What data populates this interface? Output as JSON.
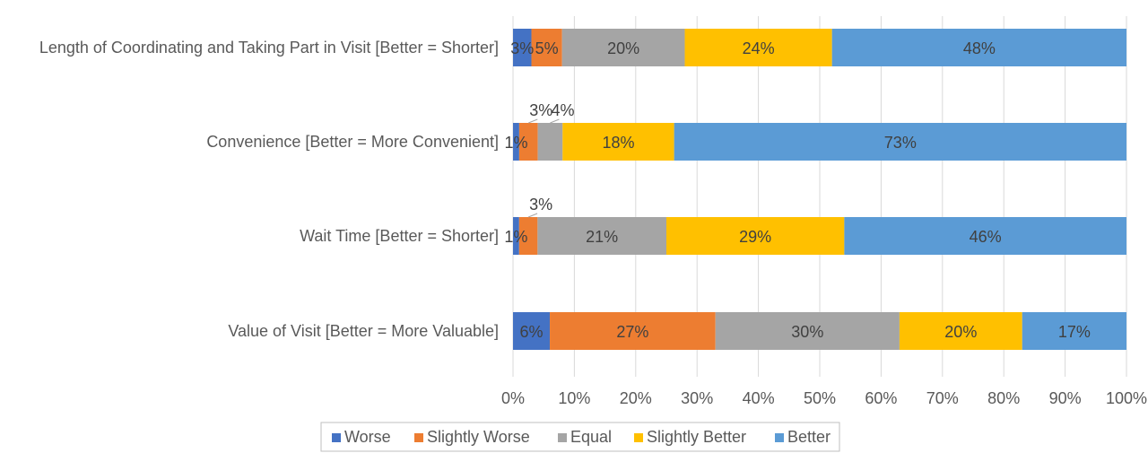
{
  "chart_data": {
    "type": "bar",
    "orientation": "horizontal",
    "stacked": "percent",
    "categories": [
      "Length of Coordinating and Taking Part in Visit [Better = Shorter]",
      "Convenience [Better = More Convenient]",
      "Wait Time [Better = Shorter]",
      "Value of Visit [Better = More Valuable]"
    ],
    "series": [
      {
        "name": "Worse",
        "color": "#4472c4",
        "values": [
          3,
          1,
          1,
          6
        ]
      },
      {
        "name": "Slightly Worse",
        "color": "#ed7d31",
        "values": [
          5,
          3,
          3,
          27
        ]
      },
      {
        "name": "Equal",
        "color": "#a5a5a5",
        "values": [
          20,
          4,
          21,
          30
        ]
      },
      {
        "name": "Slightly Better",
        "color": "#ffc000",
        "values": [
          24,
          18,
          29,
          20
        ]
      },
      {
        "name": "Better",
        "color": "#5b9bd5",
        "values": [
          48,
          73,
          46,
          17
        ]
      }
    ],
    "data_labels": [
      [
        "3%",
        "5%",
        "20%",
        "24%",
        "48%"
      ],
      [
        "1%",
        "3%",
        "4%",
        "18%",
        "73%"
      ],
      [
        "1%",
        "3%",
        "21%",
        "29%",
        "46%"
      ],
      [
        "6%",
        "27%",
        "30%",
        "20%",
        "17%"
      ]
    ],
    "xlim": [
      0,
      100
    ],
    "x_ticks": [
      "0%",
      "10%",
      "20%",
      "30%",
      "40%",
      "50%",
      "60%",
      "70%",
      "80%",
      "90%",
      "100%"
    ],
    "grid": "vertical",
    "legend": "bottom"
  }
}
